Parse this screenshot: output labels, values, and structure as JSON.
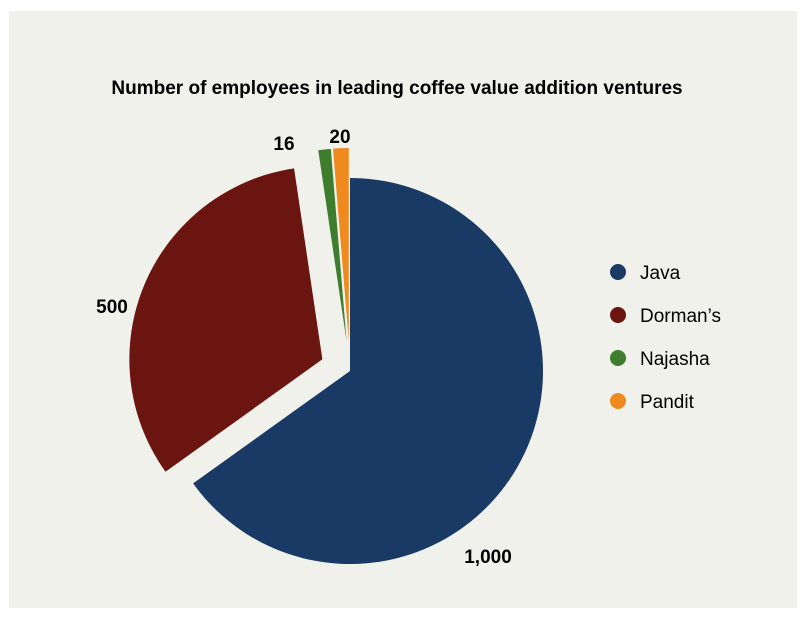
{
  "chart_data": {
    "type": "pie",
    "title": "Number of employees in leading coffee value addition ventures",
    "categories": [
      "Java",
      "Dorman’s",
      "Najasha",
      "Pandit"
    ],
    "values": [
      1000,
      500,
      16,
      20
    ],
    "value_labels": [
      "1,000",
      "500",
      "16",
      "20"
    ],
    "colors": [
      "#1a3a66",
      "#6b1510",
      "#3e7d2e",
      "#ef8a1e"
    ],
    "exploded": [
      false,
      true,
      true,
      true
    ],
    "start_angle_deg": 0,
    "direction": "clockwise",
    "legend_position": "right"
  }
}
